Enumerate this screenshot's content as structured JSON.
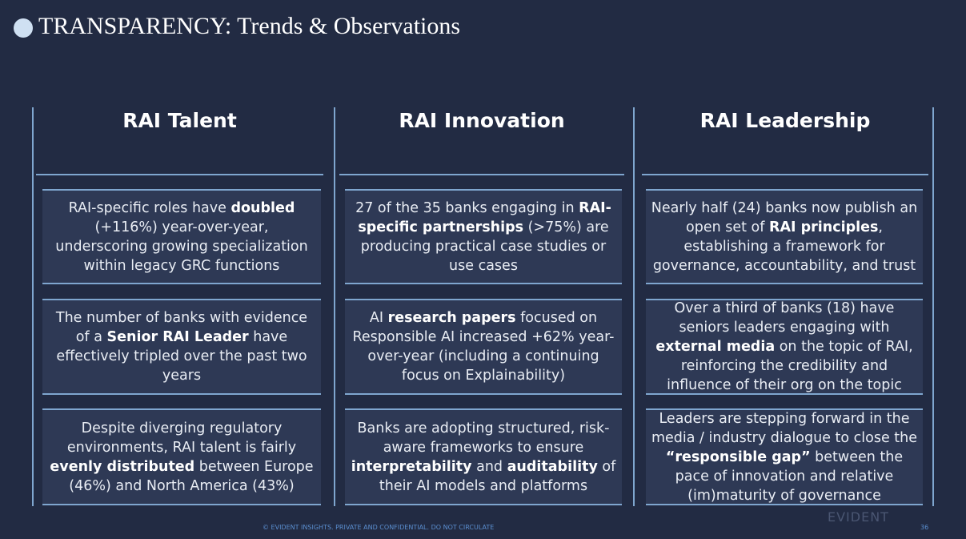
{
  "header": {
    "title": "TRANSPARENCY: Trends & Observations"
  },
  "columns": [
    {
      "heading": "RAI Talent",
      "cards": [
        {
          "runs": [
            {
              "text": "RAI-specific roles have ",
              "bold": false
            },
            {
              "text": "doubled",
              "bold": true
            },
            {
              "text": " (+116%) year-over-year, underscoring growing specialization within legacy GRC functions",
              "bold": false
            }
          ]
        },
        {
          "runs": [
            {
              "text": "The number of banks with evidence of a ",
              "bold": false
            },
            {
              "text": "Senior RAI Leader",
              "bold": true
            },
            {
              "text": " have effectively tripled over the past two years",
              "bold": false
            }
          ]
        },
        {
          "runs": [
            {
              "text": "Despite diverging regulatory environments, RAI talent is fairly ",
              "bold": false
            },
            {
              "text": "evenly distributed",
              "bold": true
            },
            {
              "text": " between Europe (46%) and North America (43%)",
              "bold": false
            }
          ]
        }
      ]
    },
    {
      "heading": "RAI Innovation",
      "cards": [
        {
          "runs": [
            {
              "text": "27 of the 35 banks engaging in ",
              "bold": false
            },
            {
              "text": "RAI-specific partnerships",
              "bold": true
            },
            {
              "text": " (>75%) are producing practical case studies or use cases",
              "bold": false
            }
          ]
        },
        {
          "runs": [
            {
              "text": "AI ",
              "bold": false
            },
            {
              "text": "research papers",
              "bold": true
            },
            {
              "text": " focused on Responsible AI increased +62% year-over-year (including a continuing focus on Explainability)",
              "bold": false
            }
          ]
        },
        {
          "runs": [
            {
              "text": "Banks are adopting structured, risk-aware frameworks to ensure ",
              "bold": false
            },
            {
              "text": "interpretability",
              "bold": true
            },
            {
              "text": " and ",
              "bold": false
            },
            {
              "text": "auditability",
              "bold": true
            },
            {
              "text": " of their AI models and platforms",
              "bold": false
            }
          ]
        }
      ]
    },
    {
      "heading": "RAI Leadership",
      "cards": [
        {
          "runs": [
            {
              "text": "Nearly half (24) banks now publish an open set of ",
              "bold": false
            },
            {
              "text": "RAI principles",
              "bold": true
            },
            {
              "text": ", establishing a framework for governance, accountability, and trust",
              "bold": false
            }
          ]
        },
        {
          "runs": [
            {
              "text": "Over a third of banks (18) have seniors leaders engaging with ",
              "bold": false
            },
            {
              "text": "external media",
              "bold": true
            },
            {
              "text": " on the topic of RAI, reinforcing the credibility and influence of their org on the topic",
              "bold": false
            }
          ]
        },
        {
          "runs": [
            {
              "text": "Leaders are stepping forward in the media / industry dialogue to close the ",
              "bold": false
            },
            {
              "text": "“responsible gap”",
              "bold": true
            },
            {
              "text": " between the pace of innovation and relative (im)maturity of governance",
              "bold": false
            }
          ]
        }
      ]
    }
  ],
  "footer": {
    "notice": "© EVIDENT INSIGHTS. PRIVATE AND CONFIDENTIAL. DO NOT CIRCULATE",
    "logo": "EVIDENT",
    "page": "36"
  }
}
